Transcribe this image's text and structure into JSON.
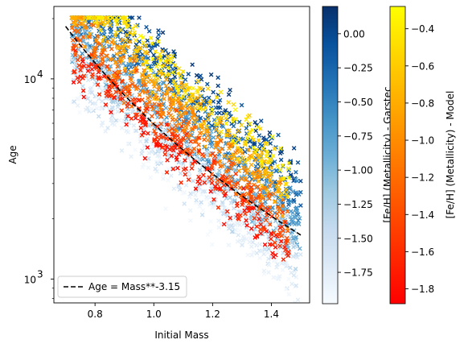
{
  "chart_data": {
    "type": "scatter",
    "title": "",
    "xlabel": "Initial Mass",
    "ylabel": "Age",
    "xlim": [
      0.66,
      1.53
    ],
    "ylim": [
      760,
      23000
    ],
    "yscale": "log",
    "grid": false,
    "x_ticks": [
      {
        "value": 0.8,
        "label": "0.8"
      },
      {
        "value": 1.0,
        "label": "1.0"
      },
      {
        "value": 1.2,
        "label": "1.2"
      },
      {
        "value": 1.4,
        "label": "1.4"
      }
    ],
    "y_ticks": [
      {
        "value": 1000,
        "label": "10",
        "exp": "3"
      },
      {
        "value": 10000,
        "label": "10",
        "exp": "4"
      }
    ],
    "series": [
      {
        "marker": "x",
        "colormap": "Blues",
        "clim": [
          -1.98,
          0.2
        ],
        "colorbar_label": "[Fe/H] (Metallicity) - Garstec"
      },
      {
        "marker": "x",
        "colormap": "autumn",
        "clim": [
          -1.88,
          -0.28
        ],
        "colorbar_label": "[Fe/H] (Metallicity) - Model"
      }
    ],
    "reference_line": {
      "label": "Age = Mass**-3.15",
      "style": "dashed",
      "color": "#000000",
      "x": [
        0.7,
        1.5
      ],
      "y": [
        18300,
        1700
      ]
    },
    "legend": {
      "position": "lower-left",
      "entries": [
        "Age = Mass**-3.15"
      ]
    },
    "colorbars": [
      {
        "label": "[Fe/H] (Metallicity) - Garstec",
        "colormap": "Blues",
        "min": -1.98,
        "max": 0.2,
        "ticks": [
          {
            "value": 0.0,
            "label": "0.00"
          },
          {
            "value": -0.25,
            "label": "−0.25"
          },
          {
            "value": -0.5,
            "label": "−0.50"
          },
          {
            "value": -0.75,
            "label": "−0.75"
          },
          {
            "value": -1.0,
            "label": "−1.00"
          },
          {
            "value": -1.25,
            "label": "−1.25"
          },
          {
            "value": -1.5,
            "label": "−1.50"
          },
          {
            "value": -1.75,
            "label": "−1.75"
          }
        ]
      },
      {
        "label": "[Fe/H] (Metallicity) - Model",
        "colormap": "autumn",
        "min": -1.88,
        "max": -0.28,
        "ticks": [
          {
            "value": -0.4,
            "label": "−0.4"
          },
          {
            "value": -0.6,
            "label": "−0.6"
          },
          {
            "value": -0.8,
            "label": "−0.8"
          },
          {
            "value": -1.0,
            "label": "−1.0"
          },
          {
            "value": -1.2,
            "label": "−1.2"
          },
          {
            "value": -1.4,
            "label": "−1.4"
          },
          {
            "value": -1.6,
            "label": "−1.6"
          },
          {
            "value": -1.8,
            "label": "−1.8"
          }
        ]
      }
    ]
  }
}
